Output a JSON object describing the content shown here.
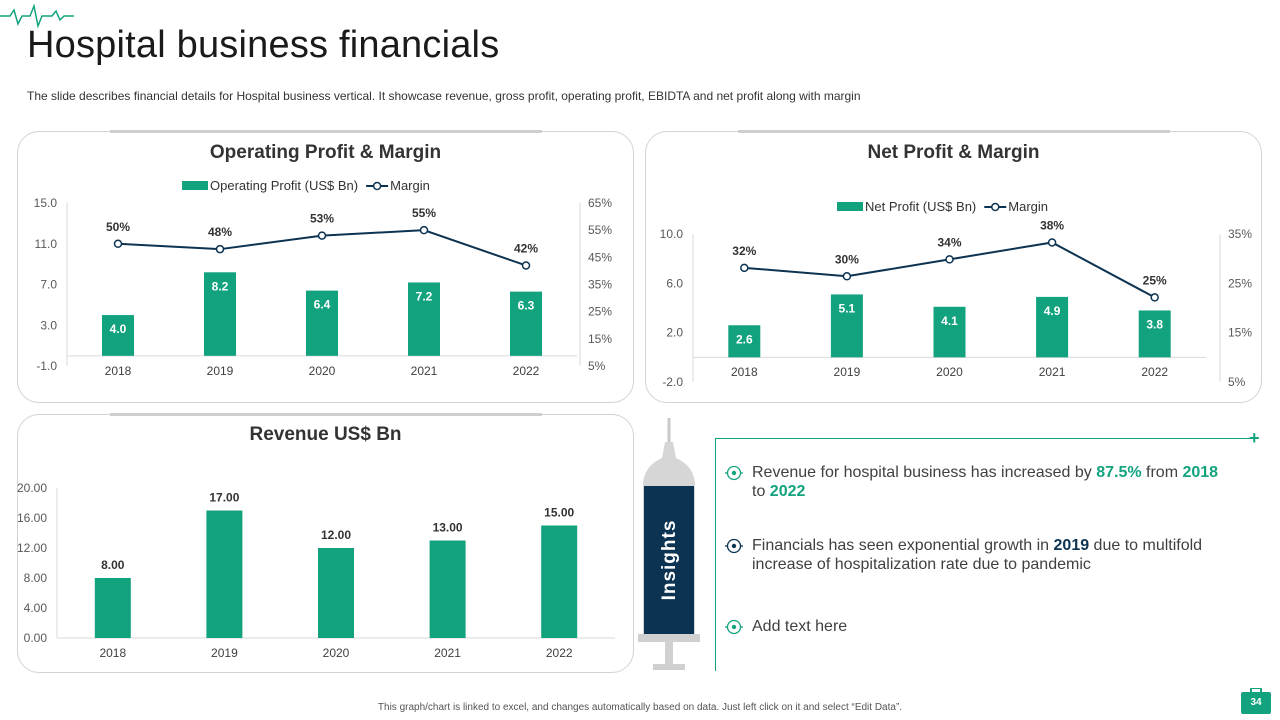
{
  "slide": {
    "title": "Hospital business financials",
    "subtitle": "The slide describes financial details for Hospital business vertical. It showcase revenue, gross profit, operating profit, EBIDTA and net profit along with margin",
    "footer": "This graph/chart is linked to excel, and changes automatically based on data. Just left click on it and select “Edit Data”.",
    "page_number": "34",
    "accent_color": "#12a37e",
    "dark_color": "#0c3351"
  },
  "insights": {
    "label": "Insights",
    "items": [
      {
        "parts": [
          "Revenue  for hospital business has increased by ",
          "87.5%",
          " from ",
          "2018",
          " to ",
          "2022"
        ]
      },
      {
        "parts": [
          "Financials has seen exponential growth in ",
          "2019",
          " due to multifold increase of hospitalization rate due to pandemic"
        ]
      },
      {
        "parts": [
          "Add text here"
        ]
      }
    ]
  },
  "chart_data": [
    {
      "type": "bar",
      "title": "Operating Profit & Margin",
      "categories": [
        "2018",
        "2019",
        "2020",
        "2021",
        "2022"
      ],
      "series": [
        {
          "name": "Operating Profit (US$ Bn)",
          "type": "bar",
          "axis": "left",
          "values": [
            4.0,
            8.2,
            6.4,
            7.2,
            6.3
          ],
          "labels": [
            "4.0",
            "8.2",
            "6.4",
            "7.2",
            "6.3"
          ],
          "color": "#12a37e"
        },
        {
          "name": "Margin",
          "type": "line",
          "axis": "right",
          "values": [
            50,
            48,
            53,
            55,
            42
          ],
          "labels": [
            "50%",
            "48%",
            "53%",
            "55%",
            "42%"
          ],
          "color": "#0c3351"
        }
      ],
      "ylim": [
        -1,
        15
      ],
      "yticks": [
        "15.0",
        "11.0",
        "7.0",
        "3.0",
        "-1.0"
      ],
      "y2lim": [
        5,
        65
      ],
      "y2ticks": [
        "65%",
        "55%",
        "45%",
        "35%",
        "25%",
        "15%",
        "5%"
      ],
      "legend_position": "top",
      "grid": false
    },
    {
      "type": "bar",
      "title": "Net Profit & Margin",
      "categories": [
        "2018",
        "2019",
        "2020",
        "2021",
        "2022"
      ],
      "series": [
        {
          "name": "Net Profit (US$ Bn)",
          "type": "bar",
          "axis": "left",
          "values": [
            2.6,
            5.1,
            4.1,
            4.9,
            3.8
          ],
          "labels": [
            "2.6",
            "5.1",
            "4.1",
            "4.9",
            "3.8"
          ],
          "color": "#12a37e"
        },
        {
          "name": "Margin",
          "type": "line",
          "axis": "right",
          "values": [
            32,
            30,
            34,
            38,
            25
          ],
          "labels": [
            "32%",
            "30%",
            "34%",
            "38%",
            "25%"
          ],
          "color": "#0c3351"
        }
      ],
      "ylim": [
        -2,
        10
      ],
      "yticks": [
        "10.0",
        "6.0",
        "2.0",
        "-2.0"
      ],
      "y2lim": [
        5,
        40
      ],
      "y2ticks": [
        "35%",
        "25%",
        "15%",
        "5%"
      ],
      "legend_position": "top",
      "grid": false
    },
    {
      "type": "bar",
      "title": "Revenue US$ Bn",
      "categories": [
        "2018",
        "2019",
        "2020",
        "2021",
        "2022"
      ],
      "series": [
        {
          "name": "",
          "type": "bar",
          "axis": "left",
          "values": [
            8.0,
            17.0,
            12.0,
            13.0,
            15.0
          ],
          "labels": [
            "8.00",
            "17.00",
            "12.00",
            "13.00",
            "15.00"
          ],
          "color": "#12a37e"
        }
      ],
      "ylim": [
        0,
        20
      ],
      "yticks": [
        "20.00",
        "16.00",
        "12.00",
        "8.00",
        "4.00",
        "0.00"
      ],
      "legend_position": "none",
      "grid": false
    }
  ]
}
